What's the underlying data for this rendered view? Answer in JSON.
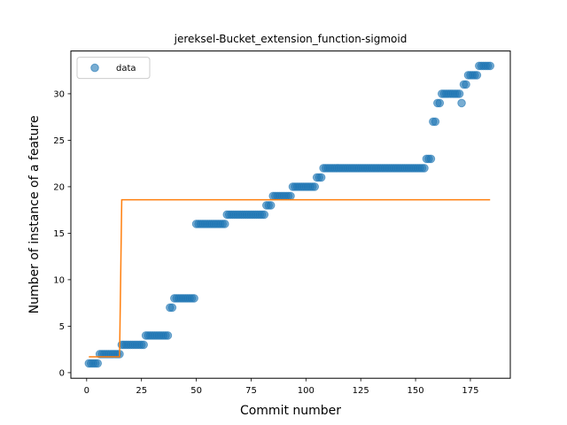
{
  "chart_data": {
    "type": "scatter",
    "title": "jereksel-Bucket_extension_function-sigmoid",
    "xlabel": "Commit number",
    "ylabel": "Number of instance of a feature",
    "xlim": [
      -7.2,
      193.2
    ],
    "ylim": [
      -0.6,
      34.6
    ],
    "xticks": [
      0,
      25,
      50,
      75,
      100,
      125,
      150,
      175
    ],
    "yticks": [
      0,
      5,
      10,
      15,
      20,
      25,
      30
    ],
    "legend": {
      "entries": [
        "data"
      ],
      "placement": "top-left"
    },
    "colors": {
      "data": "#1f77b4",
      "fit": "#ff7f0e"
    },
    "series": [
      {
        "name": "data",
        "kind": "points",
        "segments": [
          {
            "x_start": 1,
            "x_end": 5,
            "y": 1
          },
          {
            "x_start": 6,
            "x_end": 15,
            "y": 2
          },
          {
            "x_start": 16,
            "x_end": 26,
            "y": 3
          },
          {
            "x_start": 27,
            "x_end": 37,
            "y": 4
          },
          {
            "x_start": 38,
            "x_end": 39,
            "y": 7
          },
          {
            "x_start": 40,
            "x_end": 49,
            "y": 8
          },
          {
            "x_start": 50,
            "x_end": 63,
            "y": 16
          },
          {
            "x_start": 64,
            "x_end": 81,
            "y": 17
          },
          {
            "x_start": 82,
            "x_end": 84,
            "y": 18
          },
          {
            "x_start": 85,
            "x_end": 93,
            "y": 19
          },
          {
            "x_start": 94,
            "x_end": 104,
            "y": 20
          },
          {
            "x_start": 105,
            "x_end": 107,
            "y": 21
          },
          {
            "x_start": 108,
            "x_end": 154,
            "y": 22
          },
          {
            "x_start": 155,
            "x_end": 157,
            "y": 23
          },
          {
            "x_start": 158,
            "x_end": 159,
            "y": 27
          },
          {
            "x_start": 160,
            "x_end": 161,
            "y": 29
          },
          {
            "x_start": 162,
            "x_end": 170,
            "y": 30
          },
          {
            "x_start": 171,
            "x_end": 171,
            "y": 29
          },
          {
            "x_start": 172,
            "x_end": 173,
            "y": 31
          },
          {
            "x_start": 174,
            "x_end": 178,
            "y": 32
          },
          {
            "x_start": 179,
            "x_end": 184,
            "y": 33
          }
        ]
      },
      {
        "name": "fit",
        "kind": "line",
        "x": [
          1,
          15,
          16,
          184
        ],
        "y": [
          1.7,
          1.7,
          18.6,
          18.6
        ]
      }
    ]
  }
}
